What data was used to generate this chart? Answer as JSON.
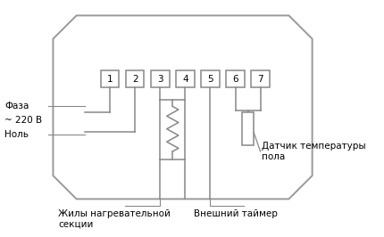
{
  "bg_color": "#ffffff",
  "border_color": "#999999",
  "terminal_color": "#888888",
  "line_color": "#888888",
  "text_color": "#000000",
  "terminals": [
    "1",
    "2",
    "3",
    "4",
    "5",
    "6",
    "7"
  ],
  "label_faza": "Фаза",
  "label_220": "~ 220 В",
  "label_nol": "Ноль",
  "label_zhily": "Жилы нагревательной\nсекции",
  "label_vnesh": "Внешний таймер",
  "label_datchik": "Датчик температуры\nпола",
  "font_size_labels": 7.5,
  "font_size_terminals": 7.5
}
